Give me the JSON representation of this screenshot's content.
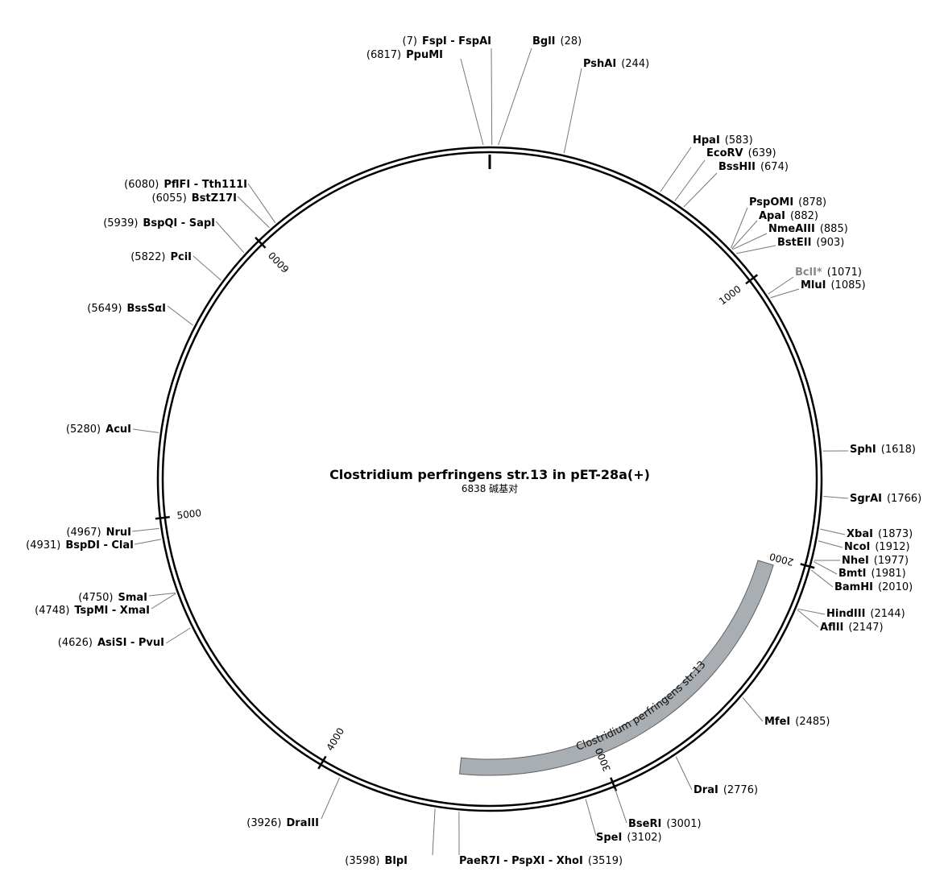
{
  "map": {
    "title": "Clostridium perfringens str.13 in pET-28a(+)",
    "subtitle": "6838 碱基对",
    "total_length": 6838,
    "colors": {
      "backbone": "#000000",
      "feature": "#a9aeb3",
      "leader": "#777777",
      "grey_label": "#888888"
    }
  },
  "feature": {
    "name": "Clostridium perfringens str.13",
    "start": 2030,
    "end": 3530
  },
  "ticks": [
    {
      "pos": 1000,
      "label": "1000"
    },
    {
      "pos": 2000,
      "label": "2000"
    },
    {
      "pos": 3000,
      "label": "3000"
    },
    {
      "pos": 4000,
      "label": "4000"
    },
    {
      "pos": 5000,
      "label": "5000"
    },
    {
      "pos": 6000,
      "label": "6000"
    }
  ],
  "sites": [
    {
      "id": "fspi",
      "name": "FspI - FspAI",
      "pos_text": "(7)"
    },
    {
      "id": "ppumi",
      "name": "PpuMI",
      "pos_text": "(6817)"
    },
    {
      "id": "bgli",
      "name": "BglI",
      "pos_text": "(28)"
    },
    {
      "id": "pshai",
      "name": "PshAI",
      "pos_text": "(244)"
    },
    {
      "id": "hpai",
      "name": "HpaI",
      "pos_text": "(583)"
    },
    {
      "id": "ecorv",
      "name": "EcoRV",
      "pos_text": "(639)"
    },
    {
      "id": "bsshii",
      "name": "BssHII",
      "pos_text": "(674)"
    },
    {
      "id": "pspomi",
      "name": "PspOMI",
      "pos_text": "(878)"
    },
    {
      "id": "apai",
      "name": "ApaI",
      "pos_text": "(882)"
    },
    {
      "id": "nmeaiii",
      "name": "NmeAIII",
      "pos_text": "(885)"
    },
    {
      "id": "bsteii",
      "name": "BstEII",
      "pos_text": "(903)"
    },
    {
      "id": "bcli",
      "name": "BclI*",
      "pos_text": "(1071)"
    },
    {
      "id": "mlui",
      "name": "MluI",
      "pos_text": "(1085)"
    },
    {
      "id": "sphi",
      "name": "SphI",
      "pos_text": "(1618)"
    },
    {
      "id": "sgrai",
      "name": "SgrAI",
      "pos_text": "(1766)"
    },
    {
      "id": "xbai",
      "name": "XbaI",
      "pos_text": "(1873)"
    },
    {
      "id": "ncoi",
      "name": "NcoI",
      "pos_text": "(1912)"
    },
    {
      "id": "nhei",
      "name": "NheI",
      "pos_text": "(1977)"
    },
    {
      "id": "bmti",
      "name": "BmtI",
      "pos_text": "(1981)"
    },
    {
      "id": "bamhi",
      "name": "BamHI",
      "pos_text": "(2010)"
    },
    {
      "id": "hindiii",
      "name": "HindIII",
      "pos_text": "(2144)"
    },
    {
      "id": "aflii",
      "name": "AflII",
      "pos_text": "(2147)"
    },
    {
      "id": "mfei",
      "name": "MfeI",
      "pos_text": "(2485)"
    },
    {
      "id": "drai",
      "name": "DraI",
      "pos_text": "(2776)"
    },
    {
      "id": "bseri",
      "name": "BseRI",
      "pos_text": "(3001)"
    },
    {
      "id": "spei",
      "name": "SpeI",
      "pos_text": "(3102)"
    },
    {
      "id": "paer7i",
      "name": "PaeR7I - PspXI - XhoI",
      "pos_text": "(3519)"
    },
    {
      "id": "blpi",
      "name": "BlpI",
      "pos_text": "(3598)"
    },
    {
      "id": "draiii",
      "name": "DraIII",
      "pos_text": "(3926)"
    },
    {
      "id": "asisi",
      "name": "AsiSI - PvuI",
      "pos_text": "(4626)"
    },
    {
      "id": "tspmi",
      "name": "TspMI - XmaI",
      "pos_text": "(4748)"
    },
    {
      "id": "smai",
      "name": "SmaI",
      "pos_text": "(4750)"
    },
    {
      "id": "bspdi",
      "name": "BspDI - ClaI",
      "pos_text": "(4931)"
    },
    {
      "id": "nrui",
      "name": "NruI",
      "pos_text": "(4967)"
    },
    {
      "id": "acui",
      "name": "AcuI",
      "pos_text": "(5280)"
    },
    {
      "id": "bsssai",
      "name": "BssSαI",
      "pos_text": "(5649)"
    },
    {
      "id": "pcii",
      "name": "PciI",
      "pos_text": "(5822)"
    },
    {
      "id": "bspqi",
      "name": "BspQI - SapI",
      "pos_text": "(5939)"
    },
    {
      "id": "bstz17i",
      "name": "BstZ17I",
      "pos_text": "(6055)"
    },
    {
      "id": "pflfi",
      "name": "PflFI - Tth111I",
      "pos_text": "(6080)"
    }
  ]
}
